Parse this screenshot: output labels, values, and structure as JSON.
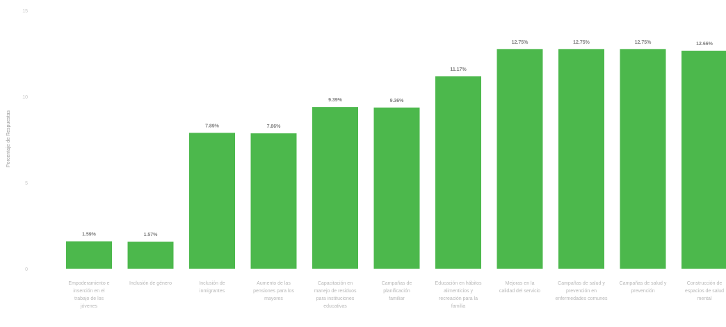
{
  "chart_data": {
    "type": "bar",
    "title": "",
    "xlabel": "",
    "ylabel": "Porcentaje de Respuestas",
    "ylim": [
      0,
      15
    ],
    "yticks": [
      "0",
      "5",
      "10",
      "15"
    ],
    "grid": false,
    "legend": "none",
    "bar_color": "#4cb84c",
    "categories": [
      "Empoderamiento e inserción en el trabajo de los jóvenes",
      "Inclusión de género",
      "Inclusión de inmigrantes",
      "Aumento de las pensiones para los mayores",
      "Capacitación en manejo de residuos para instituciones educativas",
      "Campañas de planificación familiar",
      "Educación en hábitos alimenticios y recreación para la familia",
      "Mejoras en la calidad del servicio",
      "Campañas de salud y prevención en enfermedades comunes",
      "Campañas de salud y prevención",
      "Construcción de espacios de salud mental"
    ],
    "values": [
      1.59,
      1.57,
      7.89,
      7.86,
      9.39,
      9.36,
      11.17,
      12.75,
      12.75,
      12.75,
      12.66
    ],
    "data_labels": [
      "1.59%",
      "1.57%",
      "7.89%",
      "7.86%",
      "9.39%",
      "9.36%",
      "11.17%",
      "12.75%",
      "12.75%",
      "12.75%",
      "12.66%"
    ]
  }
}
